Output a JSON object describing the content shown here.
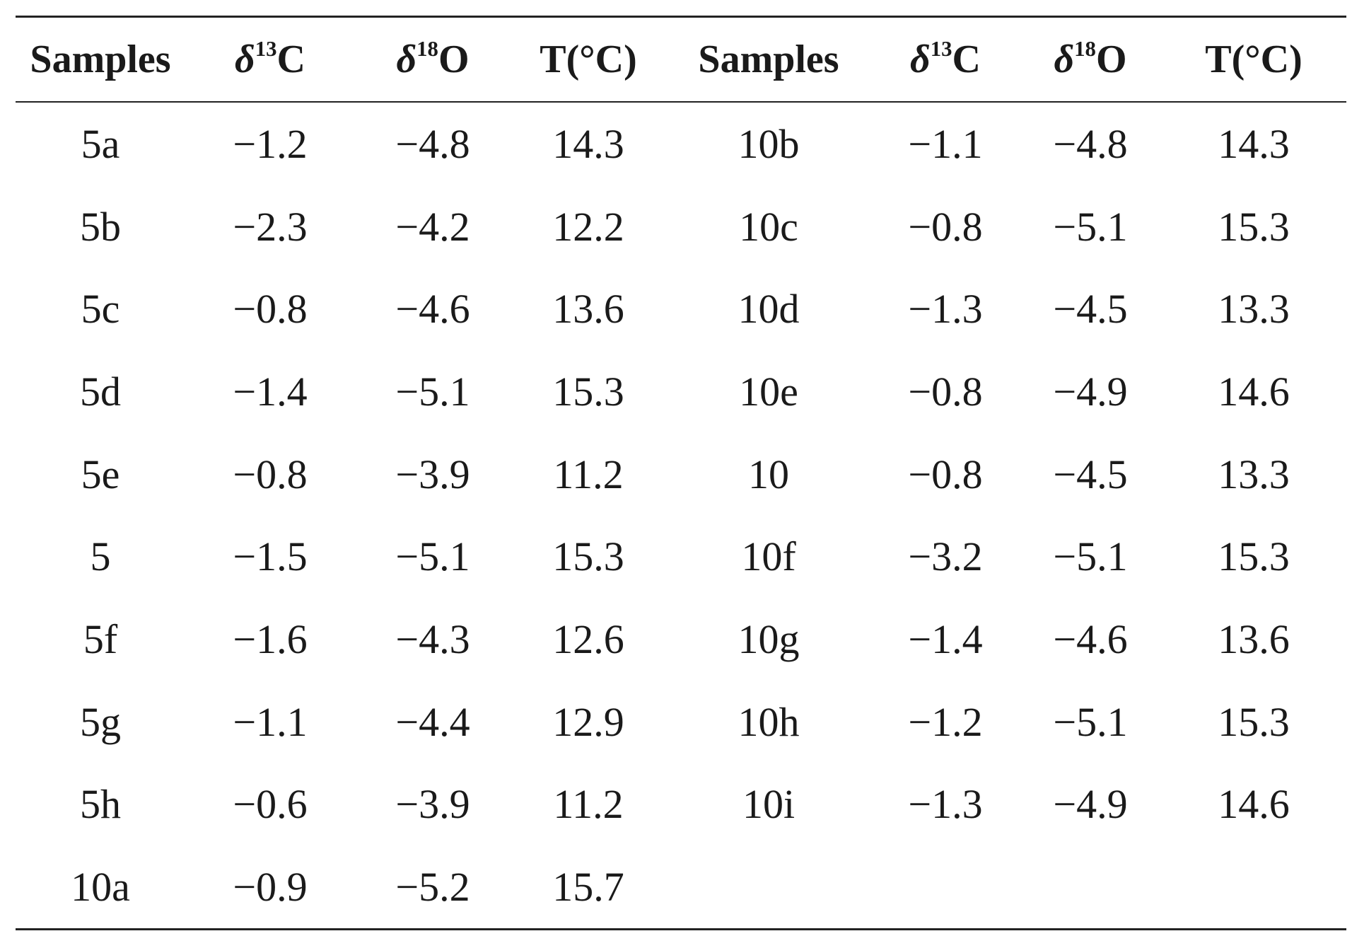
{
  "table": {
    "headers": [
      {
        "kind": "text",
        "text": "Samples"
      },
      {
        "kind": "iso",
        "symbol": "δ",
        "mass": "13",
        "element": "C"
      },
      {
        "kind": "iso",
        "symbol": "δ",
        "mass": "18",
        "element": "O"
      },
      {
        "kind": "text",
        "text": "T(°C)"
      },
      {
        "kind": "text",
        "text": "Samples"
      },
      {
        "kind": "iso",
        "symbol": "δ",
        "mass": "13",
        "element": "C"
      },
      {
        "kind": "iso",
        "symbol": "δ",
        "mass": "18",
        "element": "O"
      },
      {
        "kind": "text",
        "text": "T(°C)"
      }
    ],
    "rows": [
      [
        "5a",
        "−1.2",
        "−4.8",
        "14.3",
        "10b",
        "−1.1",
        "−4.8",
        "14.3"
      ],
      [
        "5b",
        "−2.3",
        "−4.2",
        "12.2",
        "10c",
        "−0.8",
        "−5.1",
        "15.3"
      ],
      [
        "5c",
        "−0.8",
        "−4.6",
        "13.6",
        "10d",
        "−1.3",
        "−4.5",
        "13.3"
      ],
      [
        "5d",
        "−1.4",
        "−5.1",
        "15.3",
        "10e",
        "−0.8",
        "−4.9",
        "14.6"
      ],
      [
        "5e",
        "−0.8",
        "−3.9",
        "11.2",
        "10",
        "−0.8",
        "−4.5",
        "13.3"
      ],
      [
        "5",
        "−1.5",
        "−5.1",
        "15.3",
        "10f",
        "−3.2",
        "−5.1",
        "15.3"
      ],
      [
        "5f",
        "−1.6",
        "−4.3",
        "12.6",
        "10g",
        "−1.4",
        "−4.6",
        "13.6"
      ],
      [
        "5g",
        "−1.1",
        "−4.4",
        "12.9",
        "10h",
        "−1.2",
        "−5.1",
        "15.3"
      ],
      [
        "5h",
        "−0.6",
        "−3.9",
        "11.2",
        "10i",
        "−1.3",
        "−4.9",
        "14.6"
      ],
      [
        "10a",
        "−0.9",
        "−5.2",
        "15.7",
        "",
        "",
        "",
        ""
      ]
    ]
  }
}
